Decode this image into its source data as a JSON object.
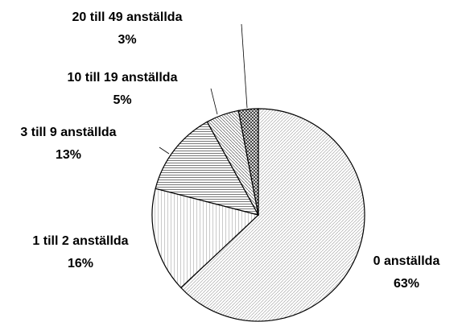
{
  "chart_data": {
    "type": "pie",
    "categories": [
      "0 anställda",
      "1 till 2 anställda",
      "3 till 9 anställda",
      "10 till 19 anställda",
      "20 till 49 anställda"
    ],
    "values": [
      63,
      16,
      13,
      5,
      3
    ],
    "value_labels": [
      "63%",
      "16%",
      "13%",
      "5%",
      "3%"
    ]
  }
}
